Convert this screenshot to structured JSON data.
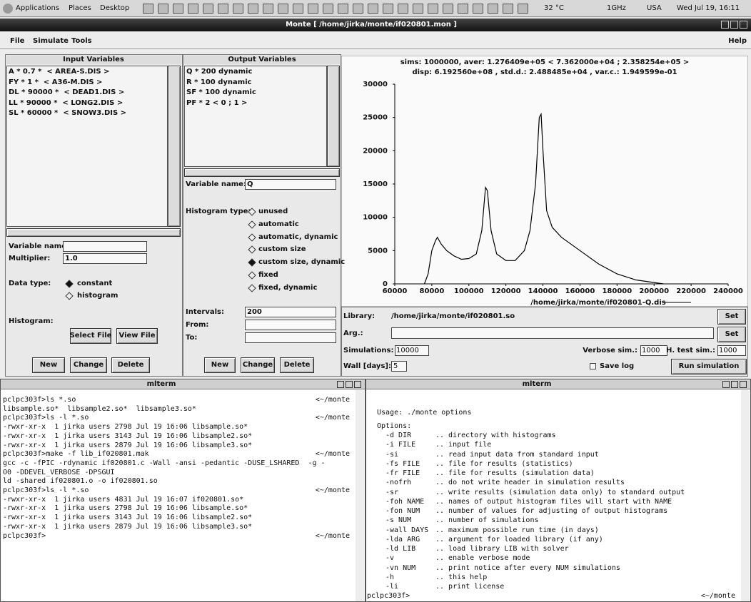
{
  "top_panel": {
    "menus": [
      "Applications",
      "Places",
      "Desktop"
    ],
    "status": [
      "32 °C",
      "1GHz",
      "USA",
      "Wed Jul 19, 16:11"
    ]
  },
  "window": {
    "title": "Monte [ /home/jirka/monte/if020801.mon ]",
    "menu": [
      "File",
      "Simulate",
      "Tools"
    ],
    "help": "Help"
  },
  "input_panel": {
    "title": "Input Variables",
    "items": [
      "A * 0.7 *  < AREA-S.DIS >",
      "FY * 1 *  < A36-M.DIS >",
      "DL * 90000 *  < DEAD1.DIS >",
      "LL * 90000 *  < LONG2.DIS >",
      "SL * 60000 *  < SNOW3.DIS >"
    ],
    "variable_name_label": "Variable name:",
    "multiplier_label": "Multiplier:",
    "multiplier": "1.0",
    "data_type_label": "Data type:",
    "data_types": [
      "constant",
      "histogram"
    ],
    "selected_data_type": 0,
    "histogram_label": "Histogram:",
    "file_buttons": [
      "Select File",
      "View File"
    ],
    "buttons": [
      "New",
      "Change",
      "Delete"
    ]
  },
  "output_panel": {
    "title": "Output Variables",
    "items": [
      "Q * 200 dynamic",
      "R * 100 dynamic",
      "SF * 100 dynamic",
      "PF * 2 < 0 ; 1 >"
    ],
    "variable_name_label": "Variable name:",
    "variable_name": "Q",
    "histogram_type_label": "Histogram type:",
    "histogram_types": [
      "unused",
      "automatic",
      "automatic, dynamic",
      "custom size",
      "custom size, dynamic",
      "fixed",
      "fixed, dynamic"
    ],
    "selected_histogram_type": 4,
    "intervals_label": "Intervals:",
    "intervals": "200",
    "from_label": "From:",
    "to_label": "To:",
    "buttons": [
      "New",
      "Change",
      "Delete"
    ]
  },
  "chart_data": {
    "type": "line",
    "title": "sims: 1000000, aver: 1.276409e+05  < 7.362000e+04 ; 2.358254e+05 >",
    "subtitle": "disp: 6.192560e+08 , std.d.: 2.488485e+04 , var.c.: 1.949599e-01",
    "x": [
      76000,
      78000,
      80000,
      82000,
      83000,
      85000,
      88000,
      92000,
      96000,
      100000,
      104000,
      107000,
      109000,
      110000,
      112000,
      115000,
      120000,
      125000,
      130000,
      133000,
      136000,
      138000,
      139000,
      140000,
      142000,
      145000,
      150000,
      160000,
      170000,
      180000,
      190000,
      200000,
      205000
    ],
    "series": [
      {
        "name": "/home/jirka/monte/if020801-Q.dis",
        "color": "#000000",
        "values": [
          0,
          1500,
          5000,
          6500,
          7000,
          6000,
          5000,
          4200,
          3700,
          3800,
          4500,
          8000,
          14500,
          14000,
          8000,
          4500,
          3500,
          3500,
          5000,
          8000,
          15000,
          25000,
          25500,
          20000,
          11000,
          8500,
          7000,
          5000,
          3000,
          1500,
          600,
          200,
          0
        ]
      }
    ],
    "xlim": [
      60000,
      240000
    ],
    "xticks": [
      60000,
      80000,
      100000,
      120000,
      140000,
      160000,
      180000,
      200000,
      220000,
      240000
    ],
    "ylim": [
      0,
      30000
    ],
    "yticks": [
      0,
      5000,
      10000,
      15000,
      20000,
      25000,
      30000
    ],
    "grid": false
  },
  "run_panel": {
    "library_label": "Library:",
    "library": "/home/jirka/monte/if020801.so",
    "set_buttons": [
      "Set",
      "Set"
    ],
    "arg_label": "Arg.:",
    "simulations_label": "Simulations:",
    "simulations": "10000",
    "verbose_label": "Verbose sim.:",
    "verbose": "1000",
    "htest_label": "H. test sim.:",
    "htest": "1000",
    "wall_label": "Wall [days]:",
    "wall": "5",
    "save_log": "Save log",
    "run": "Run simulation"
  },
  "terminals": [
    {
      "title": "mlterm",
      "lines": [
        {
          "text": "pclpc303f>ls *.so",
          "cwd": "<~/monte"
        },
        {
          "text": "libsample.so*  libsample2.so*  libsample3.so*"
        },
        {
          "text": "pclpc303f>ls -l *.so",
          "cwd": "<~/monte"
        },
        {
          "text": "-rwxr-xr-x  1 jirka users 2798 Jul 19 16:06 libsample.so*"
        },
        {
          "text": "-rwxr-xr-x  1 jirka users 3143 Jul 19 16:06 libsample2.so*"
        },
        {
          "text": "-rwxr-xr-x  1 jirka users 2879 Jul 19 16:06 libsample3.so*"
        },
        {
          "text": "pclpc303f>make -f lib_if020801.mak",
          "cwd": "<~/monte"
        },
        {
          "text": "gcc -c -fPIC -rdynamic if020801.c -Wall -ansi -pedantic -DUSE_LSHARED  -g -"
        },
        {
          "text": "O0 -DDEVEL_VERBOSE -DPSGUI"
        },
        {
          "text": "ld -shared if020801.o -o if020801.so"
        },
        {
          "text": "pclpc303f>ls -l *.so",
          "cwd": "<~/monte"
        },
        {
          "text": "-rwxr-xr-x  1 jirka users 4831 Jul 19 16:07 if020801.so*"
        },
        {
          "text": "-rwxr-xr-x  1 jirka users 2798 Jul 19 16:06 libsample.so*"
        },
        {
          "text": "-rwxr-xr-x  1 jirka users 3143 Jul 19 16:06 libsample2.so*"
        },
        {
          "text": "-rwxr-xr-x  1 jirka users 2879 Jul 19 16:06 libsample3.so*"
        },
        {
          "text": "pclpc303f>",
          "cwd": "<~/monte"
        }
      ]
    },
    {
      "title": "mlterm",
      "usage": "Usage: ./monte options",
      "options_label": "Options:",
      "options": [
        [
          "-d DIR",
          ".. directory with histograms"
        ],
        [
          "-i FILE",
          ".. input file"
        ],
        [
          "-si",
          ".. read input data from standard input"
        ],
        [
          "-fs FILE",
          ".. file for results (statistics)"
        ],
        [
          "-fr FILE",
          ".. file for results (simulation data)"
        ],
        [
          "-nofrh",
          ".. do not write header in simulation results"
        ],
        [
          "-sr",
          ".. write results (simulation data only) to standard output"
        ],
        [
          "-foh NAME",
          ".. names of output histogram files will start with NAME"
        ],
        [
          "-fon NUM",
          ".. number of values for adjusting of output histograms"
        ],
        [
          "-s NUM",
          ".. number of simulations"
        ],
        [
          "-wall DAYS",
          ".. maximum possible run time (in days)"
        ],
        [
          "-lda ARG",
          ".. argument for loaded library (if any)"
        ],
        [
          "-ld LIB",
          ".. load library LIB with solver"
        ],
        [
          "-v",
          ".. enable verbose mode"
        ],
        [
          "-vn NUM",
          ".. print notice after every NUM simulations"
        ],
        [
          "-h",
          ".. this help"
        ],
        [
          "-li",
          ".. print license"
        ]
      ],
      "prompt": {
        "text": "pclpc303f>",
        "cwd": "<~/monte"
      }
    }
  ]
}
